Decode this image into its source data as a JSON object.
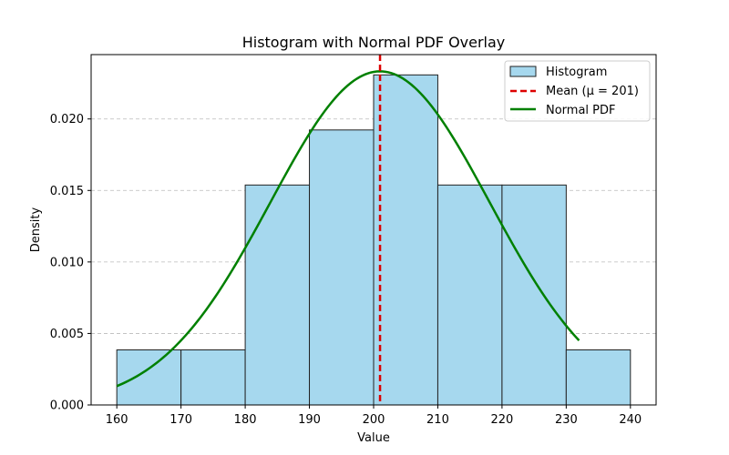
{
  "chart_data": {
    "type": "bar",
    "title": "Histogram with Normal PDF Overlay",
    "xlabel": "Value",
    "ylabel": "Density",
    "xlim": [
      156,
      244
    ],
    "ylim": [
      0,
      0.0245
    ],
    "x_ticks": [
      160,
      170,
      180,
      190,
      200,
      210,
      220,
      230,
      240
    ],
    "y_ticks": [
      0.0,
      0.005,
      0.01,
      0.015,
      0.02
    ],
    "y_tick_labels": [
      "0.000",
      "0.005",
      "0.010",
      "0.015",
      "0.020"
    ],
    "grid": "y-dashed",
    "legend_position": "top-right",
    "histogram": {
      "name": "Histogram",
      "bin_edges": [
        160,
        170,
        180,
        190,
        200,
        210,
        220,
        230,
        240
      ],
      "densities": [
        0.00385,
        0.00385,
        0.01538,
        0.01923,
        0.02308,
        0.01538,
        0.01538,
        0.00385
      ],
      "color": "#a6d8ee",
      "edge_color": "#222222"
    },
    "mean_line": {
      "name": "Mean (μ = 201)",
      "x": 201,
      "color": "#dd0000"
    },
    "normal_pdf": {
      "name": "Normal PDF",
      "mu": 201,
      "sigma": 17.1,
      "x_start": 160,
      "x_end": 232,
      "color": "#008000"
    }
  }
}
